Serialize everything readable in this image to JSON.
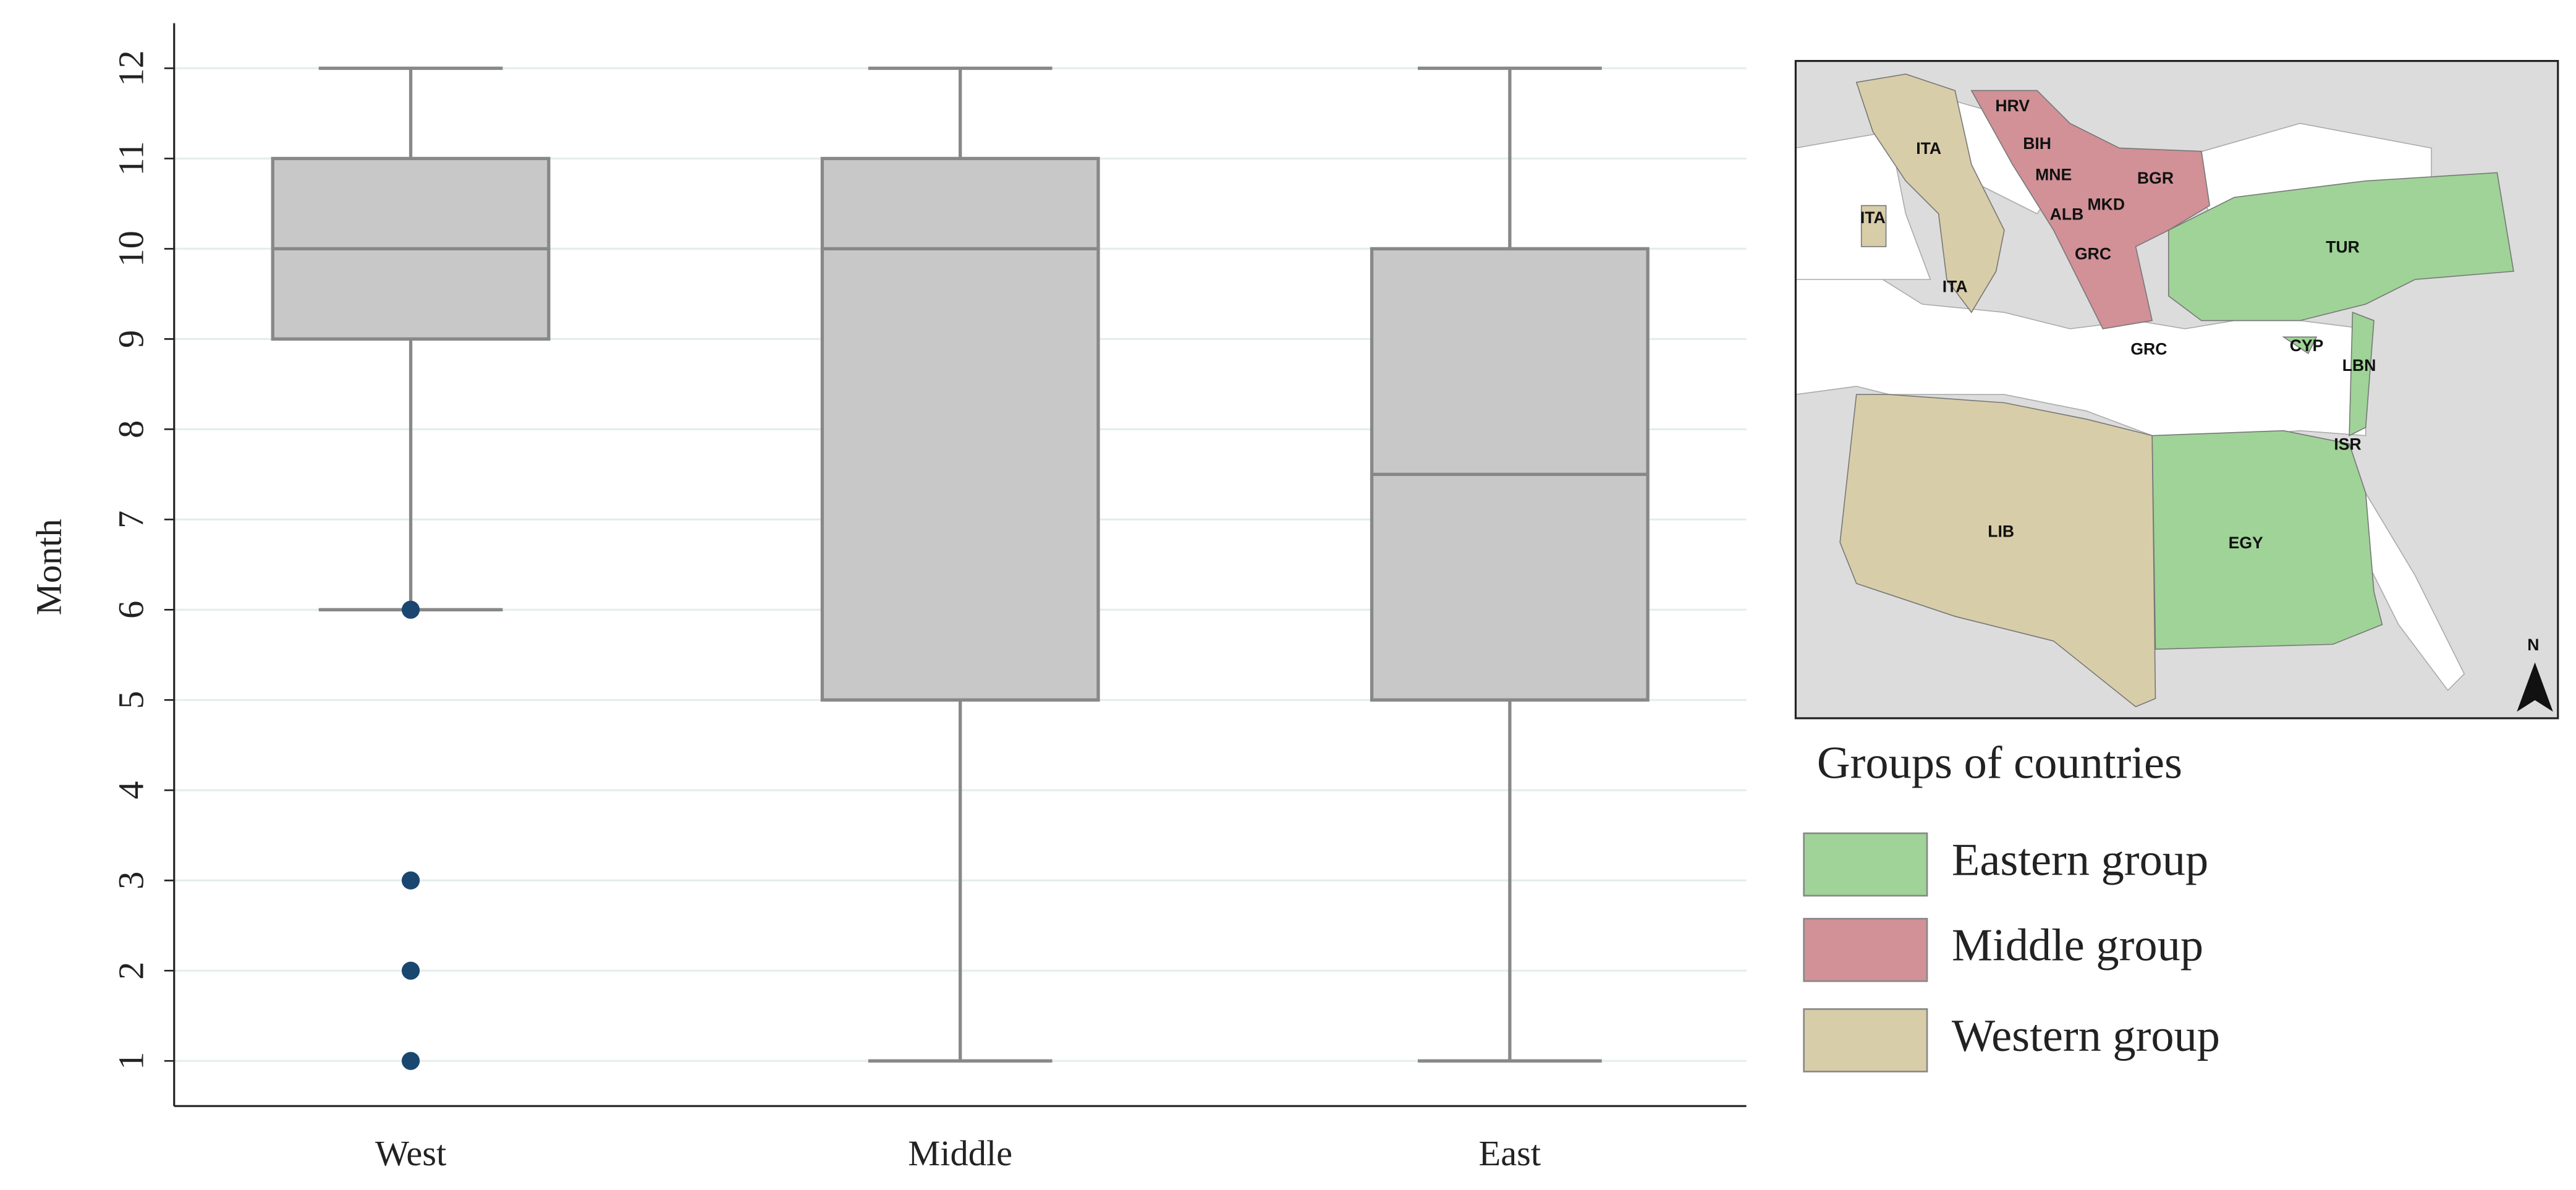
{
  "chart_data": {
    "type": "box",
    "ylabel": "Month",
    "categories": [
      "West",
      "Middle",
      "East"
    ],
    "boxes": [
      {
        "min": 6,
        "q1": 9,
        "median": 10,
        "q3": 11,
        "max": 12,
        "outliers": [
          6,
          3,
          2,
          1
        ]
      },
      {
        "min": 1,
        "q1": 5,
        "median": 10,
        "q3": 11,
        "max": 12,
        "outliers": []
      },
      {
        "min": 1,
        "q1": 5,
        "median": 7.5,
        "q3": 10,
        "max": 12,
        "outliers": []
      }
    ],
    "color": "#c8c8c8",
    "outlier_color": "#1a476f",
    "ylim": [
      0.5,
      12.5
    ],
    "yticks": [
      1,
      2,
      3,
      4,
      5,
      6,
      7,
      8,
      9,
      10,
      11,
      12
    ],
    "grid": true
  },
  "map": {
    "labels": [
      "HRV",
      "BIH",
      "ITA",
      "MNE",
      "BGR",
      "MKD",
      "ALB",
      "ITA",
      "GRC",
      "TUR",
      "ITA",
      "GRC",
      "CYP",
      "LBN",
      "ISR",
      "LIB",
      "EGY",
      "N"
    ],
    "legend_title": "Groups of countries",
    "legend": [
      {
        "name": "Eastern group",
        "color": "#9fd397"
      },
      {
        "name": "Middle group",
        "color": "#d19197"
      },
      {
        "name": "Western group",
        "color": "#d8cda9"
      }
    ]
  }
}
